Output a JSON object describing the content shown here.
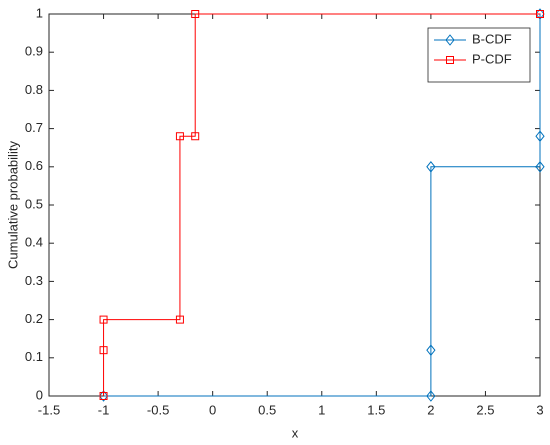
{
  "chart_data": {
    "type": "line",
    "xlabel": "x",
    "ylabel": "Cumulative probability",
    "xlim": [
      -1.5,
      3
    ],
    "xticks": [
      -1.5,
      -1,
      -0.5,
      0,
      0.5,
      1,
      1.5,
      2,
      2.5,
      3
    ],
    "ylim": [
      0,
      1
    ],
    "yticks": [
      0,
      0.1,
      0.2,
      0.3,
      0.4,
      0.5,
      0.6,
      0.7,
      0.8,
      0.9,
      1
    ],
    "grid": false,
    "legend": "northeast",
    "series": [
      {
        "name": "B-CDF",
        "color": "#0072BD",
        "marker": "diamond",
        "x": [
          -1,
          2,
          2,
          2,
          3,
          3,
          3
        ],
        "values": [
          0,
          0,
          0.12,
          0.6,
          0.6,
          0.68,
          1
        ]
      },
      {
        "name": "P-CDF",
        "color": "#FF0000",
        "marker": "square",
        "x": [
          -1,
          -1,
          -1,
          -0.3,
          -0.3,
          -0.16,
          -0.16,
          3
        ],
        "values": [
          0,
          0.12,
          0.2,
          0.2,
          0.68,
          0.68,
          1,
          1
        ]
      }
    ]
  }
}
